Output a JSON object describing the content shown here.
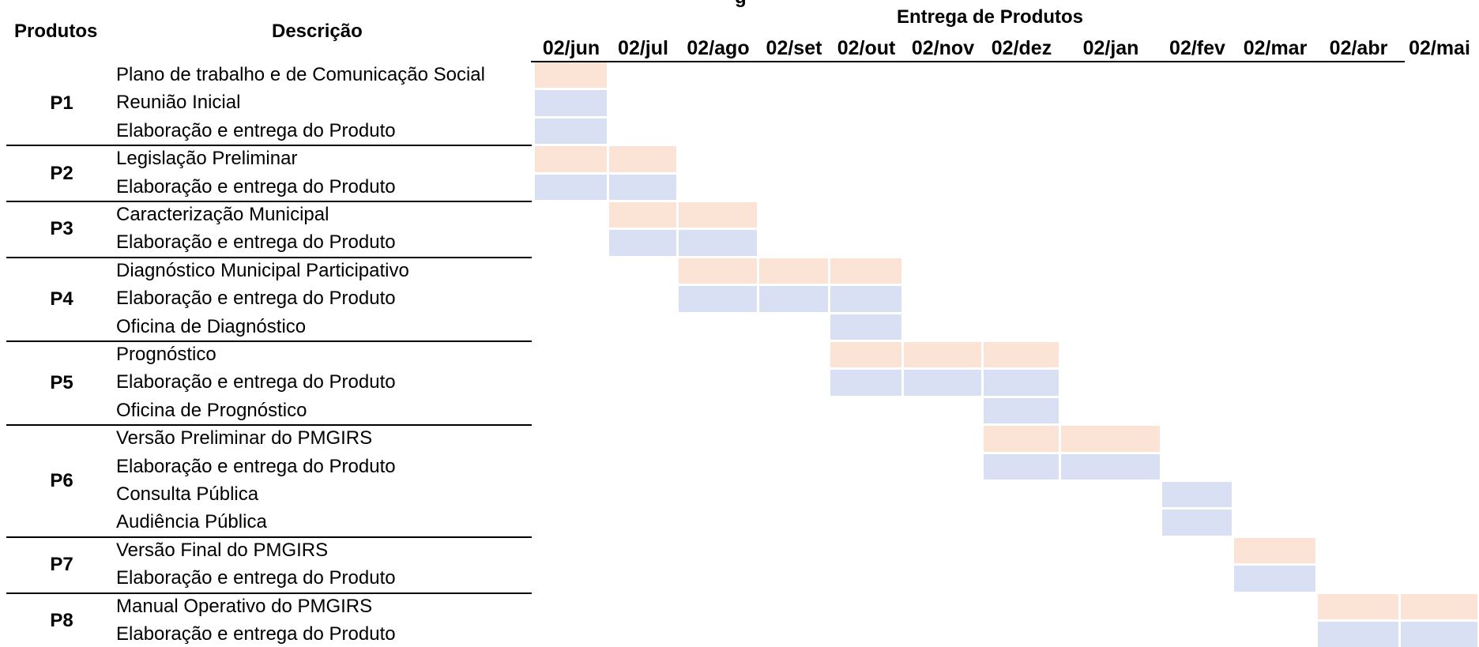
{
  "chart_data": {
    "type": "table",
    "title": "",
    "xlabel": "Entrega de Produtos",
    "header_left": {
      "products": "Produtos",
      "description": "Descrição"
    },
    "months": [
      "02/jun",
      "02/jul",
      "02/ago",
      "02/set",
      "02/out",
      "02/nov",
      "02/dez",
      "02/jan",
      "02/fev",
      "02/mar",
      "02/abr",
      "02/mai"
    ],
    "colors": {
      "orange": "#fbe3d6",
      "blue": "#d9e0f3",
      "text": "#000000"
    },
    "products": [
      {
        "id": "P1",
        "tasks": [
          {
            "label": "Plano de trabalho e de Comunicação Social",
            "color": "orange",
            "months": [
              0
            ]
          },
          {
            "label": "Reunião Inicial",
            "color": "blue",
            "months": [
              0
            ]
          },
          {
            "label": "Elaboração e entrega do Produto",
            "color": "blue",
            "months": [
              0
            ]
          }
        ]
      },
      {
        "id": "P2",
        "tasks": [
          {
            "label": "Legislação Preliminar",
            "color": "orange",
            "months": [
              0,
              1
            ]
          },
          {
            "label": "Elaboração e entrega do Produto",
            "color": "blue",
            "months": [
              0,
              1
            ]
          }
        ]
      },
      {
        "id": "P3",
        "tasks": [
          {
            "label": "Caracterização Municipal",
            "color": "orange",
            "months": [
              1,
              2
            ]
          },
          {
            "label": "Elaboração e entrega do Produto",
            "color": "blue",
            "months": [
              1,
              2
            ]
          }
        ]
      },
      {
        "id": "P4",
        "tasks": [
          {
            "label": "Diagnóstico Municipal Participativo",
            "color": "orange",
            "months": [
              2,
              3,
              4
            ]
          },
          {
            "label": "Elaboração e entrega do Produto",
            "color": "blue",
            "months": [
              2,
              3,
              4
            ]
          },
          {
            "label": "Oficina de Diagnóstico",
            "color": "blue",
            "months": [
              4
            ]
          }
        ]
      },
      {
        "id": "P5",
        "tasks": [
          {
            "label": "Prognóstico",
            "color": "orange",
            "months": [
              4,
              5,
              6
            ]
          },
          {
            "label": "Elaboração e entrega do Produto",
            "color": "blue",
            "months": [
              4,
              5,
              6
            ]
          },
          {
            "label": "Oficina de Prognóstico",
            "color": "blue",
            "months": [
              6
            ]
          }
        ]
      },
      {
        "id": "P6",
        "tasks": [
          {
            "label": "Versão Preliminar do PMGIRS",
            "color": "orange",
            "months": [
              6,
              7
            ]
          },
          {
            "label": "Elaboração e entrega do Produto",
            "color": "blue",
            "months": [
              6,
              7
            ]
          },
          {
            "label": "Consulta Pública",
            "color": "blue",
            "months": [
              8
            ]
          },
          {
            "label": "Audiência Pública",
            "color": "blue",
            "months": [
              8
            ]
          }
        ]
      },
      {
        "id": "P7",
        "tasks": [
          {
            "label": "Versão Final do PMGIRS",
            "color": "orange",
            "months": [
              9
            ]
          },
          {
            "label": "Elaboração e entrega do Produto",
            "color": "blue",
            "months": [
              9
            ]
          }
        ]
      },
      {
        "id": "P8",
        "tasks": [
          {
            "label": "Manual Operativo do PMGIRS",
            "color": "orange",
            "months": [
              10,
              11
            ]
          },
          {
            "label": "Elaboração e entrega do Produto",
            "color": "blue",
            "months": [
              10,
              11
            ]
          }
        ]
      }
    ]
  }
}
